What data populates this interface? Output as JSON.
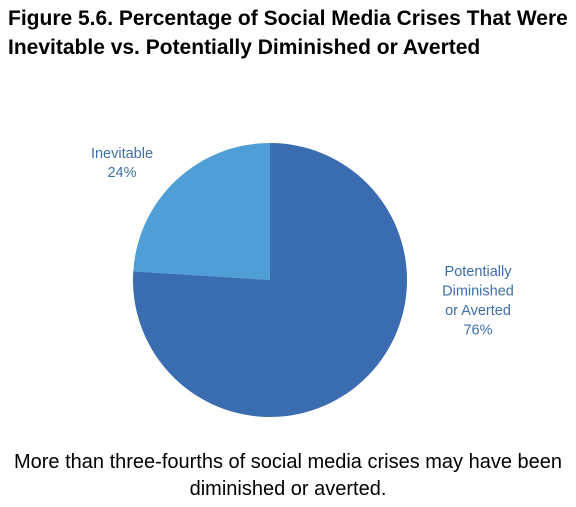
{
  "figure": {
    "title": "Figure 5.6. Percentage of Social Media Crises That Were Inevitable vs. Potentially Diminished or Averted",
    "caption": "More than three-fourths of social media crises may have been diminished or averted."
  },
  "chart_data": {
    "type": "pie",
    "title": "Figure 5.6. Percentage of Social Media Crises That Were Inevitable vs. Potentially Diminished or Averted",
    "slices": [
      {
        "label_lines": [
          "Inevitable",
          "24%"
        ],
        "label": "Inevitable",
        "value": 24,
        "color": "#4f9fd6"
      },
      {
        "label_lines": [
          "Potentially",
          "Diminished",
          "or Averted",
          "76%"
        ],
        "label": "Potentially Diminished or Averted",
        "value": 76,
        "color": "#3a6cb0"
      }
    ],
    "label_color": "#3f6ea8",
    "legend": "none"
  }
}
